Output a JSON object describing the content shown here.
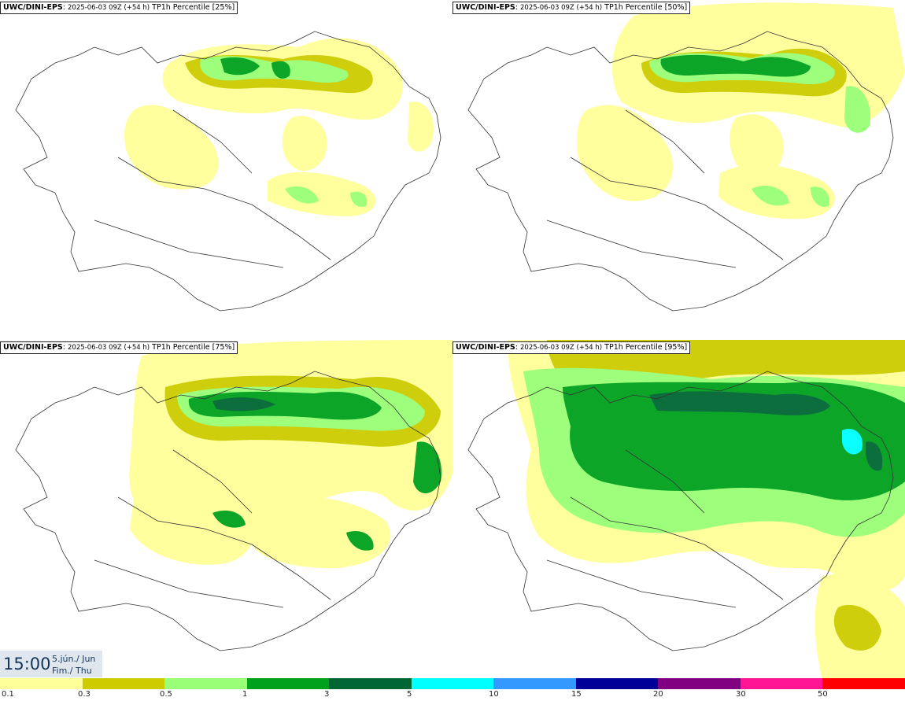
{
  "panels": [
    {
      "source": "UWC/DINI-EPS",
      "run": "2025-06-03 09Z (+54 h)",
      "field": "TP1h Percentile [25%]"
    },
    {
      "source": "UWC/DINI-EPS",
      "run": "2025-06-03 09Z (+54 h)",
      "field": "TP1h Percentile [50%]"
    },
    {
      "source": "UWC/DINI-EPS",
      "run": "2025-06-03 09Z (+54 h)",
      "field": "TP1h Percentile [75%]"
    },
    {
      "source": "UWC/DINI-EPS",
      "run": "2025-06-03 09Z (+54 h)",
      "field": "TP1h Percentile [95%]"
    }
  ],
  "valid_time": {
    "hour": "15:00",
    "date": "5.jún./ Jun",
    "weekday": "Fim./ Thu"
  },
  "legend": {
    "labels": [
      "0.1",
      "0.3",
      "0.5",
      "1",
      "3",
      "5",
      "10",
      "15",
      "20",
      "30",
      "50"
    ],
    "colors": [
      "#ffff99",
      "#cccc00",
      "#99ff77",
      "#00a11d",
      "#006633",
      "#00ffff",
      "#3399ff",
      "#000099",
      "#800080",
      "#ff1493",
      "#ff0000"
    ]
  }
}
